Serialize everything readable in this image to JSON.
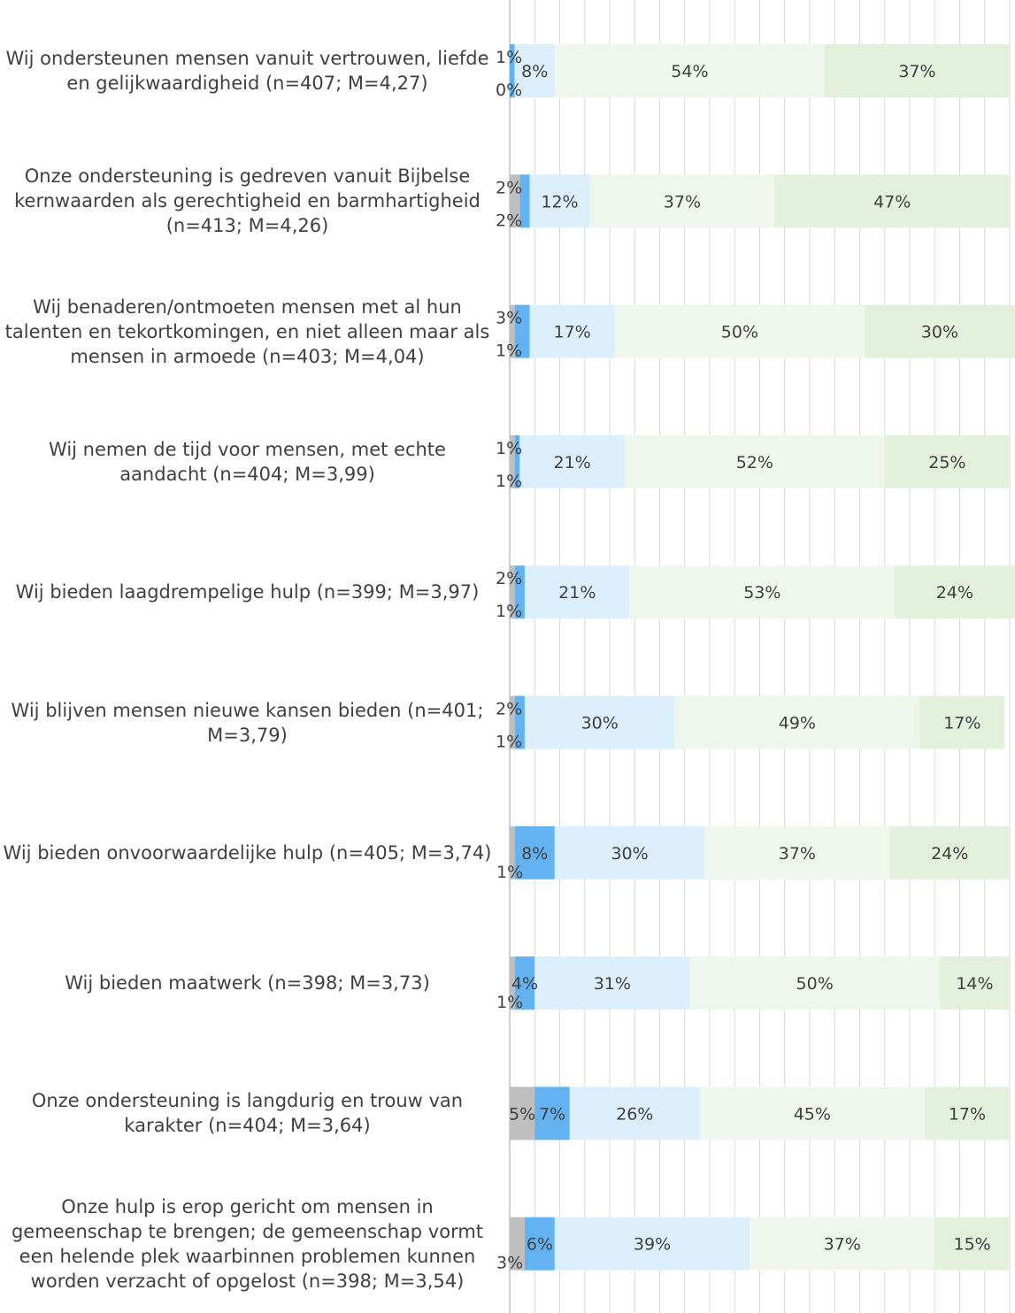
{
  "chart_data": {
    "type": "bar",
    "orientation": "horizontal",
    "stacked": true,
    "grid": true,
    "title": "",
    "xlabel": "",
    "ylabel": "",
    "xlim": [
      0,
      100
    ],
    "colors": [
      "#bfbfbf",
      "#63b2f2",
      "#ddeffc",
      "#eff7ec",
      "#e3f0db"
    ],
    "categories": [
      "Wij ondersteunen mensen vanuit vertrouwen, liefde en gelijkwaardigheid (n=407; M=4,27)",
      "Onze ondersteuning is gedreven vanuit Bijbelse kernwaarden als gerechtigheid en barmhartigheid (n=413; M=4,26)",
      "Wij benaderen/ontmoeten mensen met al hun talenten en tekortkomingen, en niet alleen maar als mensen in armoede (n=403; M=4,04)",
      "Wij nemen de tijd voor mensen, met echte aandacht (n=404; M=3,99)",
      "Wij bieden laagdrempelige hulp (n=399; M=3,97)",
      "Wij blijven mensen nieuwe kansen bieden (n=401; M=3,79)",
      "Wij bieden onvoorwaardelijke hulp (n=405; M=3,74)",
      "Wij bieden maatwerk (n=398; M=3,73)",
      "Onze ondersteuning is langdurig en trouw van karakter (n=404; M=3,64)",
      "Onze hulp is erop gericht om mensen in gemeenschap te brengen; de gemeenschap vormt een helende plek waarbinnen problemen kunnen worden verzacht of opgelost (n=398; M=3,54)"
    ],
    "series": [
      {
        "values": [
          0,
          2,
          1,
          1,
          1,
          1,
          1,
          1,
          5,
          3
        ]
      },
      {
        "values": [
          1,
          2,
          3,
          1,
          2,
          2,
          8,
          4,
          7,
          6
        ]
      },
      {
        "values": [
          8,
          12,
          17,
          21,
          21,
          30,
          30,
          31,
          26,
          39
        ]
      },
      {
        "values": [
          54,
          37,
          50,
          52,
          53,
          49,
          37,
          50,
          45,
          37
        ]
      },
      {
        "values": [
          37,
          47,
          30,
          25,
          24,
          17,
          24,
          14,
          17,
          15
        ]
      }
    ]
  }
}
